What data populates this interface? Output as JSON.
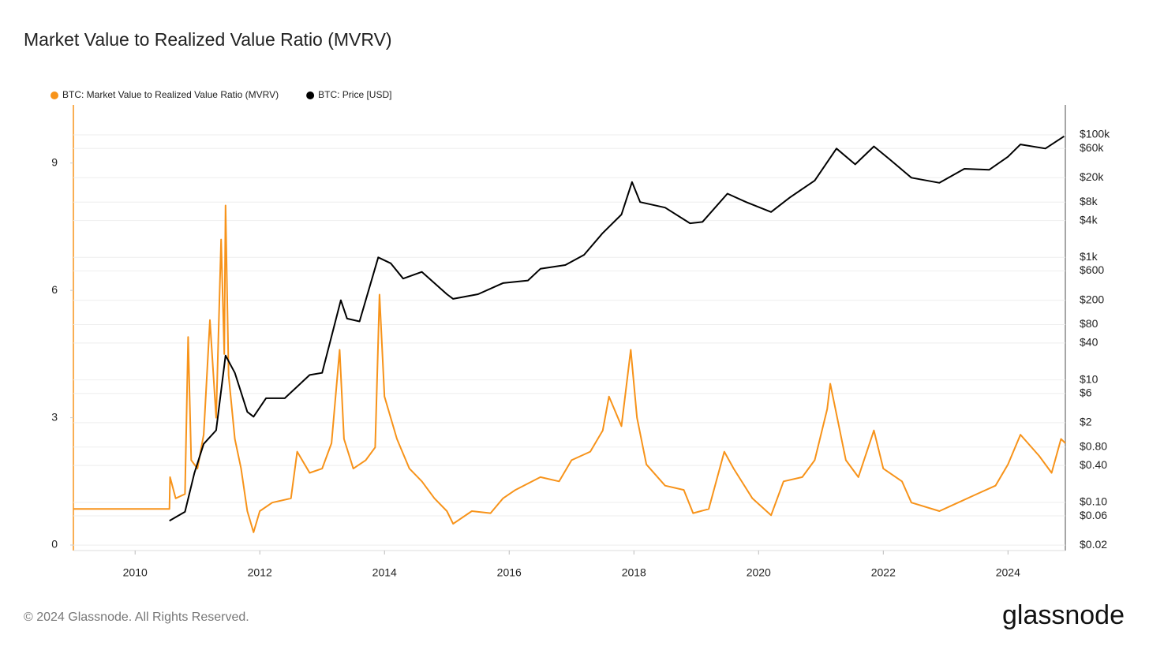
{
  "chart_data": {
    "type": "line",
    "title": "Market Value to Realized Value Ratio (MVRV)",
    "footer": "© 2024 Glassnode. All Rights Reserved.",
    "brand": "glassnode",
    "xlim": [
      2009.01,
      2024.92
    ],
    "xticks": [
      2010,
      2012,
      2014,
      2016,
      2018,
      2020,
      2022,
      2024
    ],
    "ylim": [
      -0.13,
      10.37
    ],
    "yticks": [
      0,
      3,
      6,
      9
    ],
    "y2_scale": "log",
    "y2lim": [
      0.0163,
      309000
    ],
    "y2ticks": [
      {
        "value": 100000,
        "label": "$100k"
      },
      {
        "value": 60000,
        "label": "$60k"
      },
      {
        "value": 20000,
        "label": "$20k"
      },
      {
        "value": 8000,
        "label": "$8k"
      },
      {
        "value": 4000,
        "label": "$4k"
      },
      {
        "value": 1000,
        "label": "$1k"
      },
      {
        "value": 600,
        "label": "$600"
      },
      {
        "value": 200,
        "label": "$200"
      },
      {
        "value": 80,
        "label": "$80"
      },
      {
        "value": 40,
        "label": "$40"
      },
      {
        "value": 10,
        "label": "$10"
      },
      {
        "value": 6,
        "label": "$6"
      },
      {
        "value": 2,
        "label": "$2"
      },
      {
        "value": 0.8,
        "label": "$0.80"
      },
      {
        "value": 0.4,
        "label": "$0.40"
      },
      {
        "value": 0.1,
        "label": "$0.10"
      },
      {
        "value": 0.06,
        "label": "$0.06"
      },
      {
        "value": 0.02,
        "label": "$0.02"
      }
    ],
    "grid": true,
    "series": [
      {
        "name": "BTC: Market Value to Realized Value Ratio (MVRV)",
        "color": "#f7931a",
        "x": [
          2009.01,
          2010.55,
          2010.56,
          2010.65,
          2010.8,
          2010.85,
          2010.9,
          2011.0,
          2011.1,
          2011.2,
          2011.3,
          2011.38,
          2011.43,
          2011.45,
          2011.5,
          2011.6,
          2011.7,
          2011.8,
          2011.9,
          2012.0,
          2012.2,
          2012.5,
          2012.6,
          2012.8,
          2013.0,
          2013.15,
          2013.28,
          2013.35,
          2013.5,
          2013.7,
          2013.85,
          2013.92,
          2014.0,
          2014.2,
          2014.4,
          2014.6,
          2014.8,
          2015.0,
          2015.1,
          2015.4,
          2015.7,
          2015.9,
          2016.1,
          2016.5,
          2016.8,
          2017.0,
          2017.3,
          2017.5,
          2017.6,
          2017.8,
          2017.95,
          2018.05,
          2018.2,
          2018.5,
          2018.8,
          2018.95,
          2019.2,
          2019.45,
          2019.6,
          2019.9,
          2020.2,
          2020.4,
          2020.7,
          2020.9,
          2021.1,
          2021.15,
          2021.4,
          2021.6,
          2021.85,
          2022.0,
          2022.3,
          2022.45,
          2022.9,
          2023.2,
          2023.5,
          2023.8,
          2024.0,
          2024.2,
          2024.5,
          2024.7,
          2024.85,
          2024.92
        ],
        "values": [
          0.85,
          0.85,
          1.6,
          1.1,
          1.2,
          4.9,
          2.0,
          1.8,
          2.6,
          5.3,
          3.0,
          7.2,
          4.5,
          8.0,
          4.0,
          2.5,
          1.8,
          0.8,
          0.3,
          0.8,
          1.0,
          1.1,
          2.2,
          1.7,
          1.8,
          2.4,
          4.6,
          2.5,
          1.8,
          2.0,
          2.3,
          5.9,
          3.5,
          2.5,
          1.8,
          1.5,
          1.1,
          0.8,
          0.5,
          0.8,
          0.75,
          1.1,
          1.3,
          1.6,
          1.5,
          2.0,
          2.2,
          2.7,
          3.5,
          2.8,
          4.6,
          3.0,
          1.9,
          1.4,
          1.3,
          0.75,
          0.85,
          2.2,
          1.8,
          1.1,
          0.7,
          1.5,
          1.6,
          2.0,
          3.2,
          3.8,
          2.0,
          1.6,
          2.7,
          1.8,
          1.5,
          1.0,
          0.8,
          1.0,
          1.2,
          1.4,
          1.9,
          2.6,
          2.1,
          1.7,
          2.5,
          2.4
        ]
      },
      {
        "name": "BTC: Price [USD]",
        "color": "#000000",
        "axis": "y2",
        "x": [
          2010.55,
          2010.8,
          2010.95,
          2011.1,
          2011.3,
          2011.45,
          2011.6,
          2011.8,
          2011.9,
          2012.1,
          2012.4,
          2012.8,
          2013.0,
          2013.3,
          2013.4,
          2013.6,
          2013.9,
          2014.1,
          2014.3,
          2014.6,
          2015.0,
          2015.1,
          2015.5,
          2015.9,
          2016.3,
          2016.5,
          2016.9,
          2017.2,
          2017.5,
          2017.8,
          2017.97,
          2018.1,
          2018.5,
          2018.9,
          2019.1,
          2019.5,
          2019.8,
          2020.2,
          2020.5,
          2020.9,
          2021.25,
          2021.55,
          2021.85,
          2022.1,
          2022.45,
          2022.9,
          2023.3,
          2023.7,
          2024.0,
          2024.2,
          2024.6,
          2024.9
        ],
        "values": [
          0.05,
          0.07,
          0.3,
          0.9,
          1.5,
          25,
          13,
          3,
          2.5,
          5,
          5,
          12,
          13,
          200,
          100,
          90,
          1000,
          800,
          450,
          580,
          250,
          210,
          250,
          380,
          420,
          650,
          750,
          1100,
          2500,
          5000,
          17000,
          8000,
          6500,
          3600,
          3800,
          11000,
          8000,
          5500,
          9500,
          18000,
          60000,
          33000,
          65000,
          40000,
          20000,
          16500,
          28000,
          27000,
          44000,
          70000,
          60000,
          95000
        ]
      }
    ]
  }
}
